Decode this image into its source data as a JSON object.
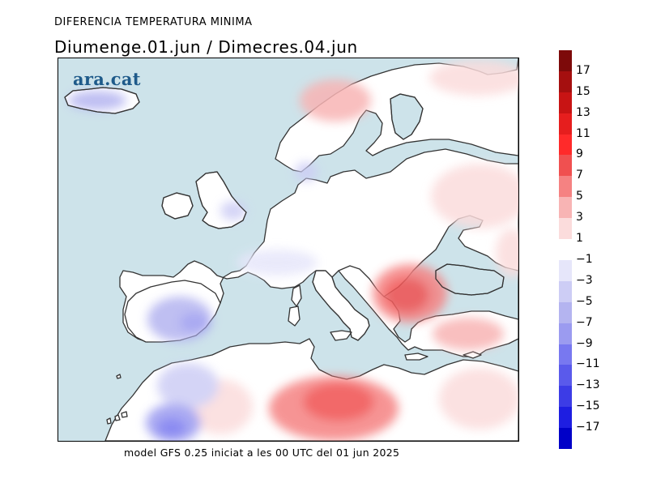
{
  "header": {
    "title": "DIFERENCIA TEMPERATURA MINIMA",
    "subtitle": "Diumenge.01.jun / Dimecres.04.jun"
  },
  "footer": {
    "text": "model GFS 0.25 iniciat a les 00 UTC del 01 jun 2025"
  },
  "logo": {
    "text": "ara.cat"
  },
  "map": {
    "region": "Europe / Mediterranean",
    "colors": {
      "sea": "#cde3ea",
      "coast": "#333333"
    }
  },
  "legend": {
    "labels": [
      "17",
      "15",
      "13",
      "11",
      "9",
      "7",
      "5",
      "3",
      "1",
      "−1",
      "−3",
      "−5",
      "−7",
      "−9",
      "−11",
      "−13",
      "−15",
      "−17"
    ],
    "swatches": [
      "#7d0a0a",
      "#a50f0f",
      "#c81414",
      "#e61e1e",
      "#ff2a2a",
      "#f05050",
      "#f58282",
      "#f8b4b4",
      "#fbdcdc",
      "#ffffff",
      "#e6e6fa",
      "#cdcdf5",
      "#b4b4f0",
      "#9b9bf0",
      "#7878f0",
      "#5a5aeb",
      "#3c3ce6",
      "#1e1ee1",
      "#0000c8"
    ]
  }
}
